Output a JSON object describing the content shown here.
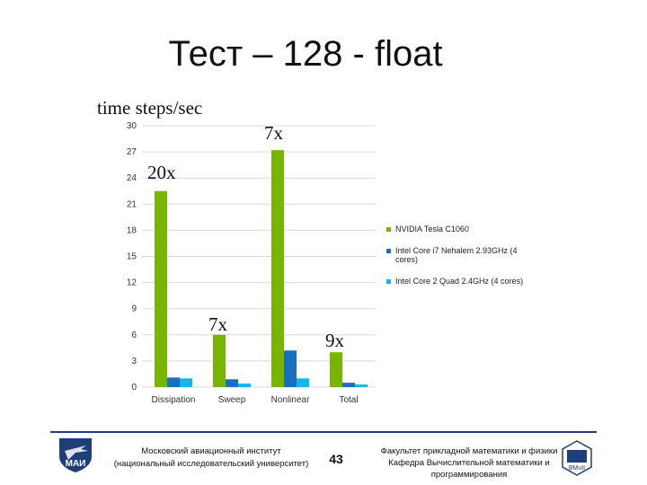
{
  "slide": {
    "title": "Тест – 128 - float"
  },
  "chart_data": {
    "type": "bar",
    "ylabel": "time steps/sec",
    "ylim": [
      0,
      30
    ],
    "yticks": [
      "0",
      "3",
      "6",
      "9",
      "12",
      "15",
      "18",
      "21",
      "24",
      "27",
      "30"
    ],
    "categories": [
      "Dissipation",
      "Sweep",
      "Nonlinear",
      "Total"
    ],
    "series": [
      {
        "name": "NVIDIA Tesla C1060",
        "color": "#77b500",
        "values": [
          22.5,
          6.0,
          27.2,
          4.0
        ]
      },
      {
        "name": "Intel Core i7 Nehalem 2.93GHz (4 cores)",
        "color": "#1b6fbf",
        "values": [
          1.1,
          0.9,
          4.2,
          0.5
        ]
      },
      {
        "name": "Intel Core 2 Quad 2.4GHz (4 cores)",
        "color": "#18b4e8",
        "values": [
          1.0,
          0.4,
          1.0,
          0.3
        ]
      }
    ],
    "grid": true,
    "legend_position": "right",
    "annotations": [
      "20x",
      "7x",
      "7x",
      "9x"
    ]
  },
  "footer": {
    "left_line1": "Московский авиационный институт",
    "left_line2": "(национальный исследовательский университет)",
    "page_number": "43",
    "right_line1": "Факультет прикладной математики и физики",
    "right_line2": "Кафедра Вычислительной математики и",
    "right_line3": "программирования",
    "logo_left_text": "МАИ",
    "logo_right_text": "BMuII"
  }
}
